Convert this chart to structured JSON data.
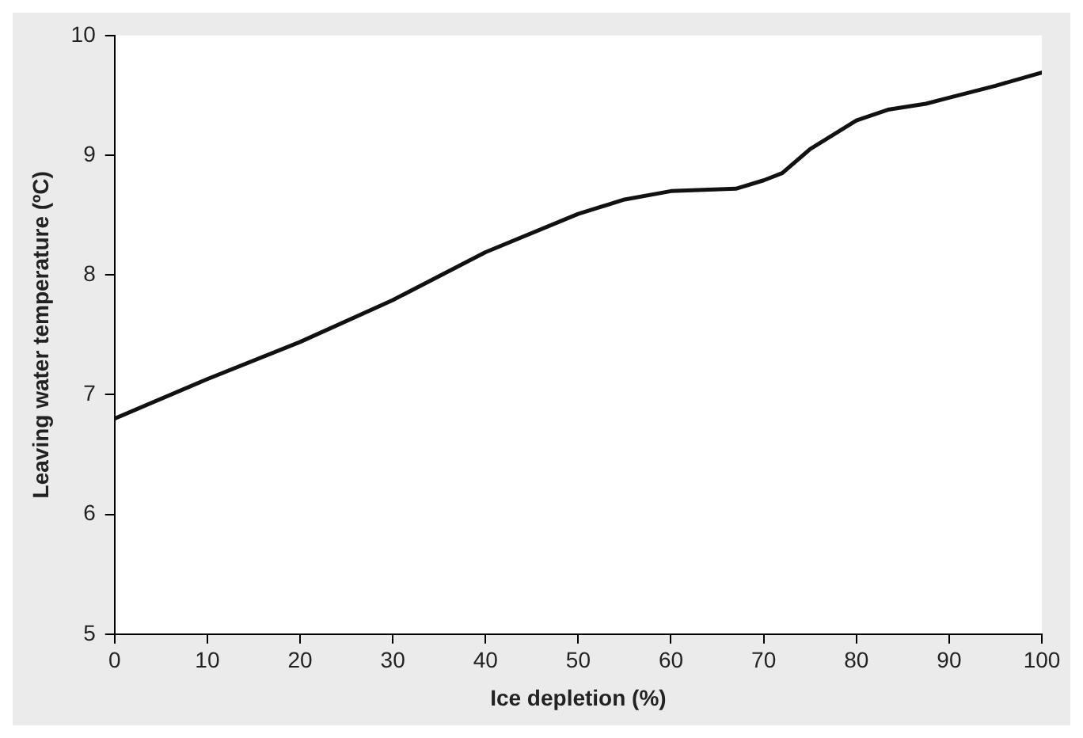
{
  "chart_data": {
    "type": "line",
    "xlabel": "Ice depletion (%)",
    "ylabel": "Leaving water temperature (ºC)",
    "x": [
      0,
      10,
      20,
      30,
      40,
      50,
      55,
      60,
      67,
      70,
      72,
      75,
      80,
      83.4,
      87.5,
      90,
      95,
      100
    ],
    "series": [
      {
        "color": "#111111",
        "values": [
          6.8,
          7.13,
          7.44,
          7.79,
          8.19,
          8.51,
          8.63,
          8.7,
          8.72,
          8.79,
          8.85,
          9.05,
          9.29,
          9.38,
          9.43,
          9.48,
          9.58,
          9.69
        ]
      }
    ],
    "xlim": [
      0,
      100
    ],
    "xticks": [
      0,
      10,
      20,
      30,
      40,
      50,
      60,
      70,
      80,
      90,
      100
    ],
    "ylim": [
      5,
      10
    ],
    "yticks": [
      5,
      6,
      7,
      8,
      9,
      10
    ],
    "grid": false,
    "legend": false,
    "marker": "none",
    "line_style": "solid"
  }
}
